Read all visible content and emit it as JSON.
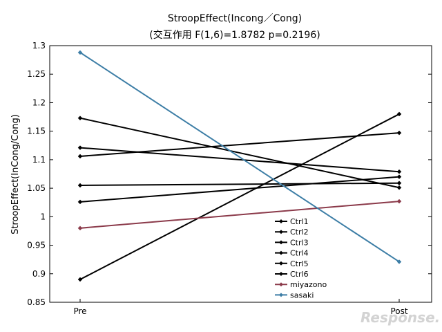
{
  "chart_data": {
    "type": "line",
    "title": "StroopEffect(Incong／Cong)",
    "subtitle": "(交互作用 F(1,6)=1.8782 p=0.2196)",
    "xlabel": "",
    "ylabel": "StroopEffect(InCong/Cong)",
    "categories": [
      "Pre",
      "Post"
    ],
    "ylim": [
      0.85,
      1.3
    ],
    "yticks": [
      "0.85",
      "0.9",
      "0.95",
      "1",
      "1.05",
      "1.1",
      "1.15",
      "1.2",
      "1.25",
      "1.3"
    ],
    "grid": false,
    "legend_position": "bottom-right",
    "series": [
      {
        "name": "Ctrl1",
        "values": [
          1.173,
          1.051
        ],
        "color": "#000000"
      },
      {
        "name": "Ctrl2",
        "values": [
          1.121,
          1.079
        ],
        "color": "#000000"
      },
      {
        "name": "Ctrl3",
        "values": [
          1.106,
          1.147
        ],
        "color": "#000000"
      },
      {
        "name": "Ctrl4",
        "values": [
          1.055,
          1.059
        ],
        "color": "#000000"
      },
      {
        "name": "Ctrl5",
        "values": [
          1.026,
          1.07
        ],
        "color": "#000000"
      },
      {
        "name": "Ctrl6",
        "values": [
          0.89,
          1.18
        ],
        "color": "#000000"
      },
      {
        "name": "miyazono",
        "values": [
          0.98,
          1.027
        ],
        "color": "#8b3a4a"
      },
      {
        "name": "sasaki",
        "values": [
          1.288,
          0.921
        ],
        "color": "#3d7ea6"
      }
    ]
  },
  "watermark": "Response."
}
